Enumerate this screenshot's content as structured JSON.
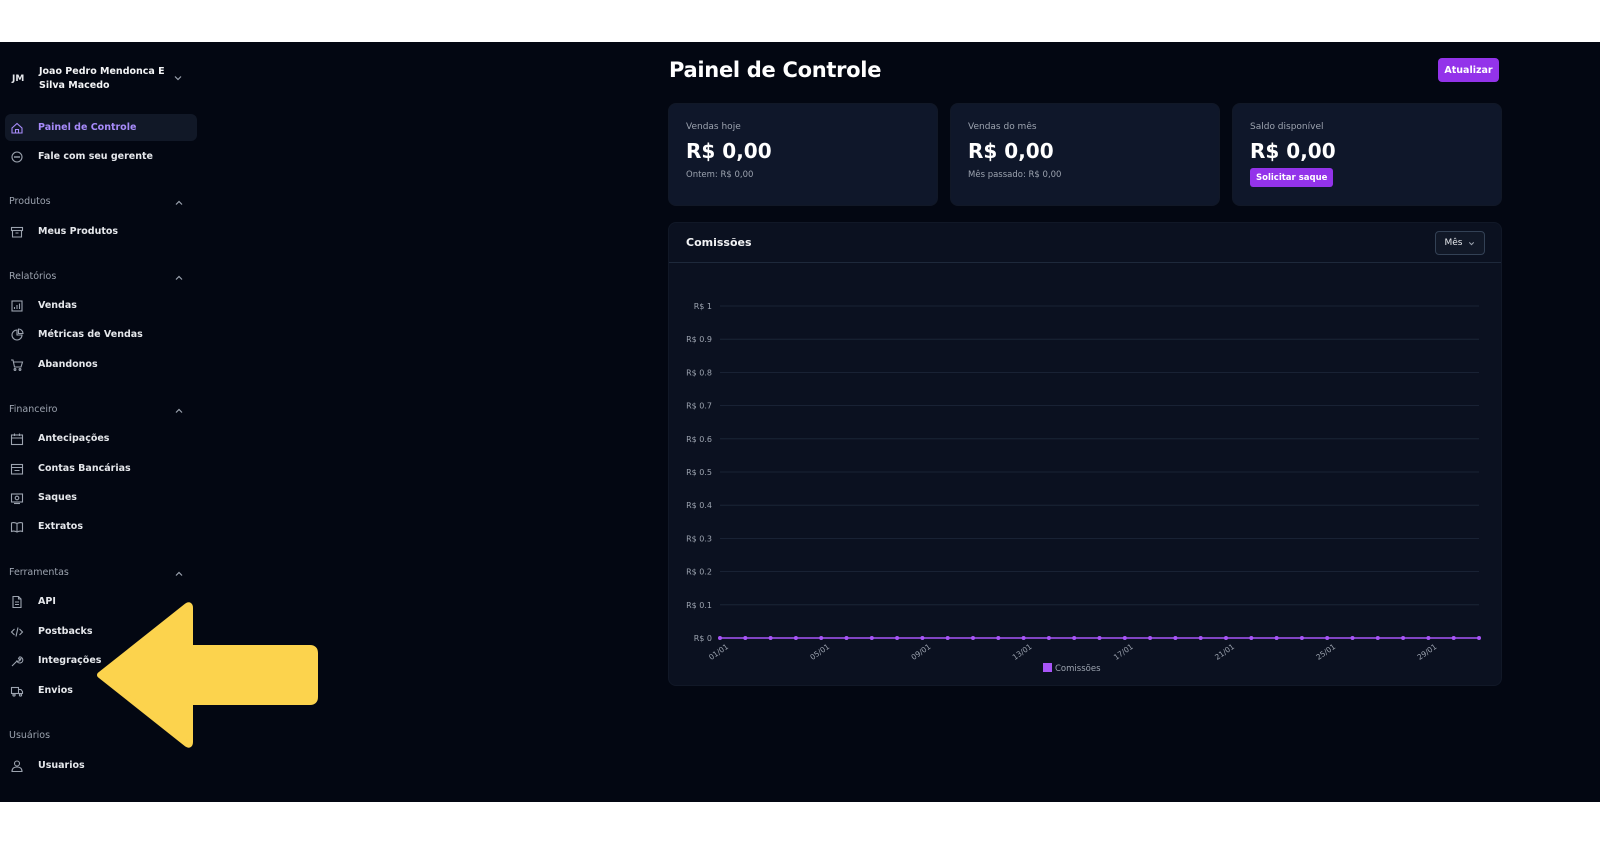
{
  "user": {
    "initials": "JM",
    "name": "Joao Pedro Mendonca E Silva Macedo"
  },
  "nav_top": [
    {
      "label": "Painel de Controle",
      "icon": "home-icon",
      "active": true
    },
    {
      "label": "Fale com seu gerente",
      "icon": "chat-icon"
    }
  ],
  "sections": [
    {
      "title": "Produtos",
      "items": [
        {
          "label": "Meus Produtos",
          "icon": "archive-icon"
        }
      ]
    },
    {
      "title": "Relatórios",
      "items": [
        {
          "label": "Vendas",
          "icon": "chart-icon"
        },
        {
          "label": "Métricas de Vendas",
          "icon": "pie-chart-icon"
        },
        {
          "label": "Abandonos",
          "icon": "cart-icon"
        }
      ]
    },
    {
      "title": "Financeiro",
      "items": [
        {
          "label": "Antecipações",
          "icon": "calendar-icon"
        },
        {
          "label": "Contas Bancárias",
          "icon": "bank-icon"
        },
        {
          "label": "Saques",
          "icon": "cash-icon"
        },
        {
          "label": "Extratos",
          "icon": "book-icon"
        }
      ]
    },
    {
      "title": "Ferramentas",
      "items": [
        {
          "label": "API",
          "icon": "document-icon"
        },
        {
          "label": "Postbacks",
          "icon": "code-icon"
        },
        {
          "label": "Integrações",
          "icon": "wrench-icon"
        },
        {
          "label": "Envios",
          "icon": "truck-icon"
        }
      ]
    },
    {
      "title": "Usuários",
      "items": [
        {
          "label": "Usuarios",
          "icon": "user-icon"
        }
      ]
    }
  ],
  "header": {
    "title": "Painel de Controle",
    "refresh_label": "Atualizar"
  },
  "cards": [
    {
      "label": "Vendas hoje",
      "value": "R$ 0,00",
      "sub": "Ontem: R$ 0,00"
    },
    {
      "label": "Vendas do mês",
      "value": "R$ 0,00",
      "sub": "Mês passado: R$ 0,00"
    },
    {
      "label": "Saldo disponível",
      "value": "R$ 0,00",
      "action": "Solicitar saque"
    }
  ],
  "commissions": {
    "title": "Comissões",
    "period": "Mês"
  },
  "chart_data": {
    "type": "line",
    "title": "Comissões",
    "xlabel": "",
    "ylabel": "",
    "y_ticks": [
      "R$ 0",
      "R$ 0.1",
      "R$ 0.2",
      "R$ 0.3",
      "R$ 0.4",
      "R$ 0.5",
      "R$ 0.6",
      "R$ 0.7",
      "R$ 0.8",
      "R$ 0.9",
      "R$ 1"
    ],
    "ylim": [
      0,
      1
    ],
    "x_tick_labels": [
      "01/01",
      "05/01",
      "09/01",
      "13/01",
      "17/01",
      "21/01",
      "25/01",
      "29/01"
    ],
    "x_tick_days": [
      1,
      5,
      9,
      13,
      17,
      21,
      25,
      29
    ],
    "x_days": [
      1,
      2,
      3,
      4,
      5,
      6,
      7,
      8,
      9,
      10,
      11,
      12,
      13,
      14,
      15,
      16,
      17,
      18,
      19,
      20,
      21,
      22,
      23,
      24,
      25,
      26,
      27,
      28,
      29,
      30,
      31
    ],
    "series": [
      {
        "name": "Comissões",
        "values": [
          0,
          0,
          0,
          0,
          0,
          0,
          0,
          0,
          0,
          0,
          0,
          0,
          0,
          0,
          0,
          0,
          0,
          0,
          0,
          0,
          0,
          0,
          0,
          0,
          0,
          0,
          0,
          0,
          0,
          0,
          0
        ],
        "color": "#a855f7"
      }
    ],
    "legend": "bottom",
    "grid": true
  },
  "colors": {
    "accent": "#9333ea",
    "background": "#030712",
    "card": "#0f172a",
    "annotation": "#fcd34d"
  }
}
